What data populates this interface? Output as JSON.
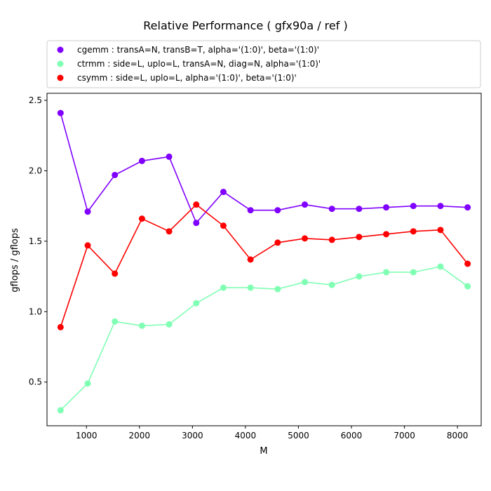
{
  "chart_data": {
    "type": "line",
    "title": "Relative Performance ( gfx90a /  ref )",
    "xlabel": "M",
    "ylabel": "gflops / gflops",
    "xlim": [
      256,
      8448
    ],
    "ylim": [
      0.19,
      2.55
    ],
    "xticks": [
      1000,
      2000,
      3000,
      4000,
      5000,
      6000,
      7000,
      8000
    ],
    "yticks": [
      0.5,
      1.0,
      1.5,
      2.0,
      2.5
    ],
    "xtick_labels": [
      "1000",
      "2000",
      "3000",
      "4000",
      "5000",
      "6000",
      "7000",
      "8000"
    ],
    "ytick_labels": [
      "0.5",
      "1.0",
      "1.5",
      "2.0",
      "2.5"
    ],
    "grid": false,
    "legend_position": "top",
    "x": [
      512,
      1024,
      1536,
      2048,
      2560,
      3072,
      3584,
      4096,
      4608,
      5120,
      5632,
      6144,
      6656,
      7168,
      7680,
      8192
    ],
    "series": [
      {
        "name": "cgemm :  transA=N, transB=T, alpha='(1:0)', beta='(1:0)'",
        "color": "#8000ff",
        "values": [
          2.41,
          1.71,
          1.97,
          2.07,
          2.1,
          1.63,
          1.85,
          1.72,
          1.72,
          1.76,
          1.73,
          1.73,
          1.74,
          1.75,
          1.75,
          1.74
        ]
      },
      {
        "name": "ctrmm :  side=L, uplo=L, transA=N, diag=N, alpha='(1:0)'",
        "color": "#80ffb4",
        "values": [
          0.3,
          0.49,
          0.93,
          0.9,
          0.91,
          1.06,
          1.17,
          1.17,
          1.16,
          1.21,
          1.19,
          1.25,
          1.28,
          1.28,
          1.32,
          1.18
        ]
      },
      {
        "name": "csymm :  side=L, uplo=L, alpha='(1:0)', beta='(1:0)'",
        "color": "#ff0000",
        "values": [
          0.89,
          1.47,
          1.27,
          1.66,
          1.57,
          1.76,
          1.61,
          1.37,
          1.49,
          1.52,
          1.51,
          1.53,
          1.55,
          1.57,
          1.58,
          1.34
        ]
      }
    ]
  }
}
